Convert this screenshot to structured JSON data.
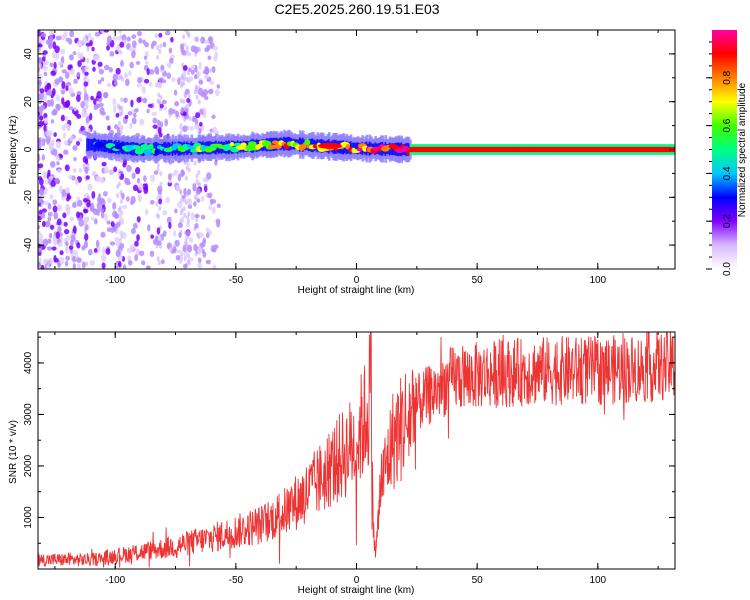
{
  "title": "C2E5.2025.260.19.51.E03",
  "chart_data": [
    {
      "type": "heatmap",
      "xlabel": "Height of straight line (km)",
      "ylabel": "Frequency (Hz)",
      "xlim": [
        -132,
        132
      ],
      "ylim": [
        -50,
        50
      ],
      "x_ticks": [
        -100,
        -50,
        0,
        50,
        100
      ],
      "y_ticks": [
        -40,
        -20,
        0,
        20,
        40
      ],
      "colorbar": {
        "label": "Normalized spectral amplitude",
        "range": [
          0.0,
          1.0
        ],
        "ticks": [
          0.0,
          0.2,
          0.4,
          0.6,
          0.8
        ],
        "colors": [
          "#ffffff",
          "#d7b9ff",
          "#8000ff",
          "#0000ff",
          "#00c8ff",
          "#00ff80",
          "#40ff00",
          "#ffff00",
          "#ff8000",
          "#ff0000",
          "#ff00a0"
        ]
      },
      "ridge": [
        {
          "x": -110,
          "freq": 2.0
        },
        {
          "x": -90,
          "freq": 0.0
        },
        {
          "x": -70,
          "freq": 0.5
        },
        {
          "x": -50,
          "freq": 1.0
        },
        {
          "x": -30,
          "freq": 2.5
        },
        {
          "x": -15,
          "freq": 1.5
        },
        {
          "x": 0,
          "freq": 0.5
        },
        {
          "x": 20,
          "freq": 0.0
        },
        {
          "x": 132,
          "freq": 0.0
        }
      ]
    },
    {
      "type": "line",
      "xlabel": "Height of straight line (km)",
      "ylabel": "SNR (10 * v/v)",
      "xlim": [
        -132,
        132
      ],
      "ylim": [
        0,
        4600
      ],
      "x_ticks": [
        -100,
        -50,
        0,
        50,
        100
      ],
      "y_ticks": [
        1000,
        2000,
        3000,
        4000
      ],
      "color": "#ee3333",
      "trend": [
        {
          "x": -132,
          "y": 180
        },
        {
          "x": -110,
          "y": 180
        },
        {
          "x": -100,
          "y": 250
        },
        {
          "x": -80,
          "y": 400
        },
        {
          "x": -60,
          "y": 600
        },
        {
          "x": -40,
          "y": 850
        },
        {
          "x": -30,
          "y": 1100
        },
        {
          "x": -20,
          "y": 1500
        },
        {
          "x": -10,
          "y": 2000
        },
        {
          "x": 0,
          "y": 2500
        },
        {
          "x": 5,
          "y": 3100
        },
        {
          "x": 6,
          "y": 4150
        },
        {
          "x": 7,
          "y": 700
        },
        {
          "x": 8,
          "y": 300
        },
        {
          "x": 10,
          "y": 1600
        },
        {
          "x": 15,
          "y": 2500
        },
        {
          "x": 25,
          "y": 3200
        },
        {
          "x": 40,
          "y": 3700
        },
        {
          "x": 60,
          "y": 3800
        },
        {
          "x": 80,
          "y": 3850
        },
        {
          "x": 100,
          "y": 3850
        },
        {
          "x": 120,
          "y": 3900
        },
        {
          "x": 132,
          "y": 3950
        }
      ]
    }
  ]
}
